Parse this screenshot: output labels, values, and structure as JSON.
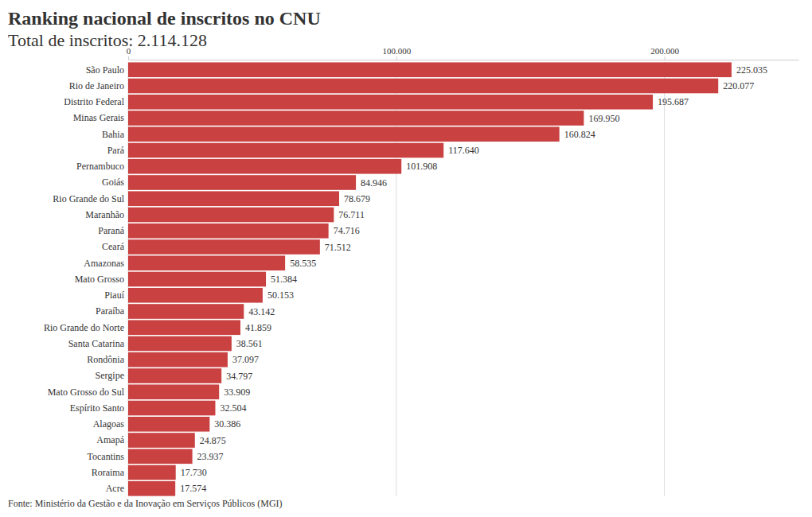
{
  "chart_data": {
    "type": "bar",
    "orientation": "horizontal",
    "title": "Ranking nacional de inscritos no CNU",
    "subtitle": "Total de inscritos: 2.114.128",
    "source": "Fonte: Ministério da Gestão e da Inovação em Serviços Públicos (MGI)",
    "categories": [
      "São Paulo",
      "Rio de Janeiro",
      "Distrito Federal",
      "Minas Gerais",
      "Bahia",
      "Pará",
      "Pernambuco",
      "Goiás",
      "Rio Grande do Sul",
      "Maranhão",
      "Paraná",
      "Ceará",
      "Amazonas",
      "Mato Grosso",
      "Piauí",
      "Paraíba",
      "Rio Grande do Norte",
      "Santa Catarina",
      "Rondônia",
      "Sergipe",
      "Mato Grosso do Sul",
      "Espírito Santo",
      "Alagoas",
      "Amapá",
      "Tocantins",
      "Roraima",
      "Acre"
    ],
    "values": [
      225035,
      220077,
      195687,
      169950,
      160824,
      117640,
      101908,
      84946,
      78679,
      76711,
      74716,
      71512,
      58535,
      51384,
      50153,
      43142,
      41859,
      38561,
      37097,
      34797,
      33909,
      32504,
      30386,
      24875,
      23937,
      17730,
      17574
    ],
    "value_labels": [
      "225.035",
      "220.077",
      "195.687",
      "169.950",
      "160.824",
      "117.640",
      "101.908",
      "84.946",
      "78.679",
      "76.711",
      "74.716",
      "71.512",
      "58.535",
      "51.384",
      "50.153",
      "43.142",
      "41.859",
      "38.561",
      "37.097",
      "34.797",
      "33.909",
      "32.504",
      "30.386",
      "24.875",
      "23.937",
      "17.730",
      "17.574"
    ],
    "color": "#c94141",
    "xlim": [
      0,
      250000
    ],
    "xticks": [
      0,
      {
        "value": 100000,
        "label": "100.000"
      },
      {
        "value": 200000,
        "label": "200.000"
      }
    ],
    "grid": true,
    "data_labels": true
  }
}
